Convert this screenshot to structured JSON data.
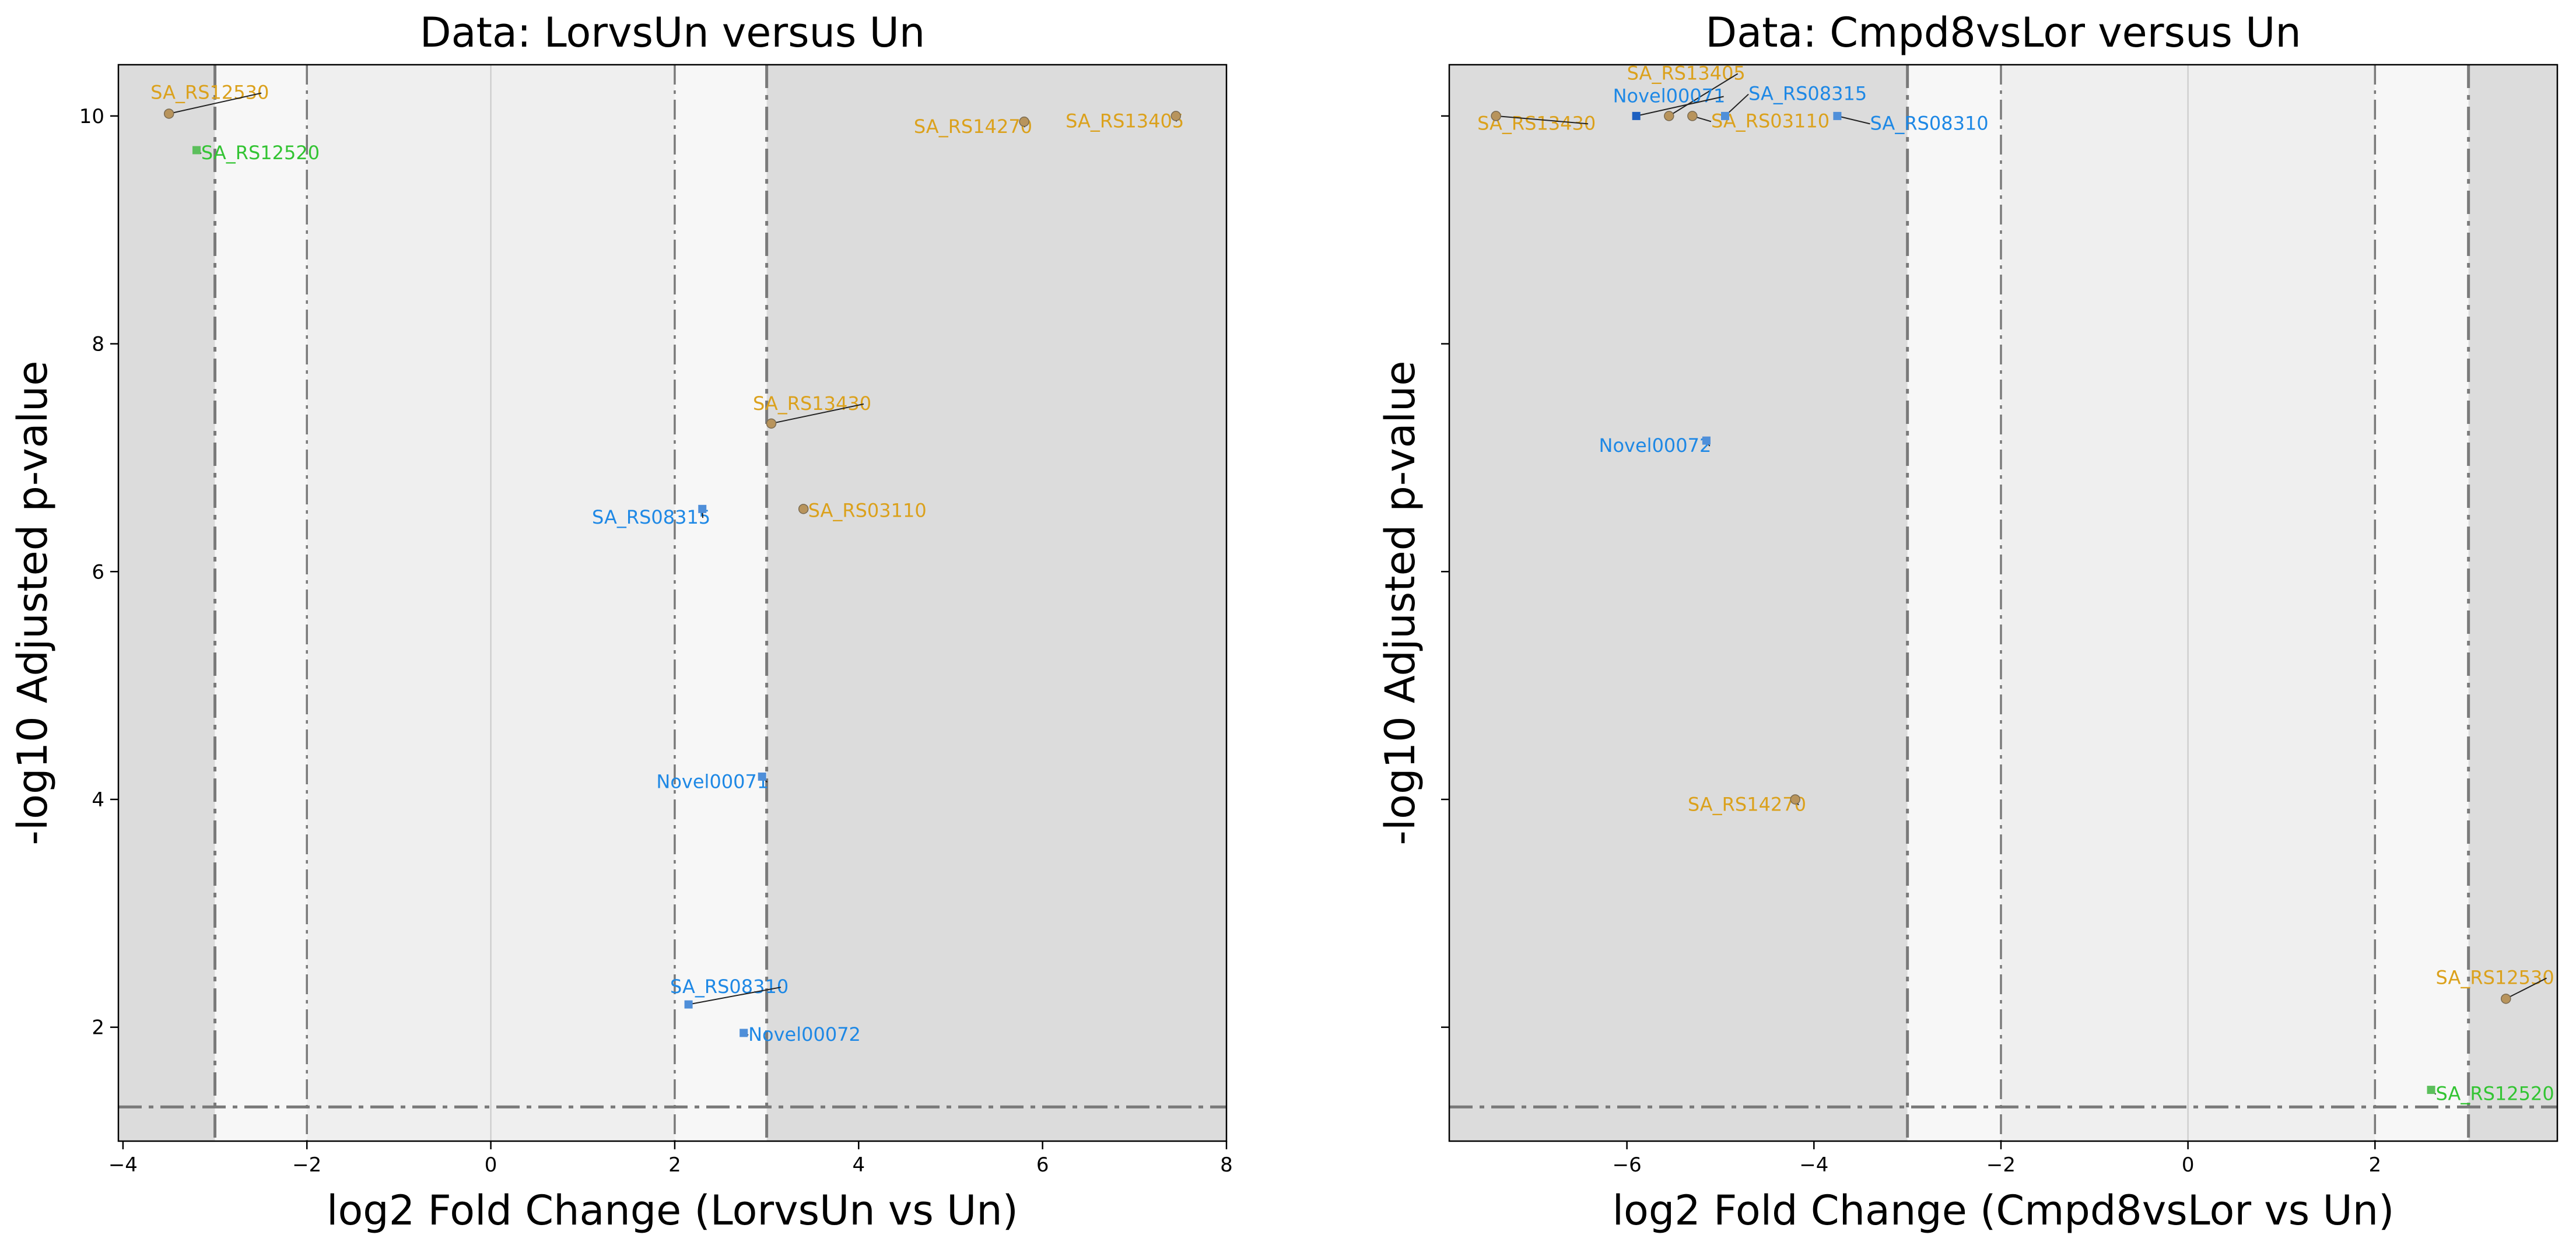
{
  "chart_data": [
    {
      "type": "scatter",
      "title": "Data: LorvsUn versus Un",
      "xlabel": "log2 Fold Change (LorvsUn vs Un)",
      "ylabel": "-log10 Adjusted p-value",
      "xlim": [
        -4.05,
        8.0
      ],
      "ylim": [
        1.0,
        10.45
      ],
      "xticks": [
        -4,
        -2,
        0,
        2,
        4,
        6,
        8
      ],
      "xtick_labels": [
        "−4",
        "−2",
        "0",
        "2",
        "4",
        "6",
        "8"
      ],
      "yticks": [
        2,
        4,
        6,
        8,
        10
      ],
      "ytick_labels": [
        "2",
        "4",
        "6",
        "8",
        "10"
      ],
      "grid": false,
      "legend": "none",
      "threshold_lines": {
        "x_outer": [
          -3,
          3
        ],
        "x_inner": [
          -2,
          2
        ],
        "y": 1.3
      },
      "shaded_regions": {
        "outer": "#dcdcdc",
        "inner": "#f7f7f7",
        "center": "#efefef"
      },
      "points": [
        {
          "name": "SA_RS12530",
          "x": -3.5,
          "y": 10.02,
          "color": "#b8945c",
          "label_color": "#dba11c",
          "marker": "circle",
          "label_x": -3.7,
          "label_y": 10.15
        },
        {
          "name": "SA_RS12520",
          "x": -3.2,
          "y": 9.7,
          "color": "#5cbf5c",
          "label_color": "#33c433",
          "marker": "square",
          "label_x": -3.15,
          "label_y": 9.62
        },
        {
          "name": "SA_RS14270",
          "x": 5.8,
          "y": 9.95,
          "color": "#b8945c",
          "label_color": "#dba11c",
          "marker": "circle",
          "label_x": 4.6,
          "label_y": 9.85
        },
        {
          "name": "SA_RS13405",
          "x": 7.45,
          "y": 10.0,
          "color": "#b8945c",
          "label_color": "#dba11c",
          "marker": "circle",
          "label_x": 6.25,
          "label_y": 9.9
        },
        {
          "name": "SA_RS13430",
          "x": 3.05,
          "y": 7.3,
          "color": "#b8945c",
          "label_color": "#dba11c",
          "marker": "circle",
          "label_x": 2.85,
          "label_y": 7.42
        },
        {
          "name": "SA_RS03110",
          "x": 3.4,
          "y": 6.55,
          "color": "#b8945c",
          "label_color": "#dba11c",
          "marker": "circle",
          "label_x": 3.45,
          "label_y": 6.48
        },
        {
          "name": "SA_RS08315",
          "x": 2.3,
          "y": 6.55,
          "color": "#4f8fd9",
          "label_color": "#1e88e5",
          "marker": "square",
          "label_x": 1.1,
          "label_y": 6.42
        },
        {
          "name": "Novel00071",
          "x": 2.95,
          "y": 4.2,
          "color": "#4f8fd9",
          "label_color": "#1e88e5",
          "marker": "square",
          "label_x": 1.8,
          "label_y": 4.1
        },
        {
          "name": "SA_RS08310",
          "x": 2.15,
          "y": 2.2,
          "color": "#4f8fd9",
          "label_color": "#1e88e5",
          "marker": "square",
          "label_x": 1.95,
          "label_y": 2.3
        },
        {
          "name": "Novel00072",
          "x": 2.75,
          "y": 1.95,
          "color": "#4f8fd9",
          "label_color": "#1e88e5",
          "marker": "square",
          "label_x": 2.8,
          "label_y": 1.88
        }
      ]
    },
    {
      "type": "scatter",
      "title": "Data: Cmpd8vsLor versus Un",
      "xlabel": "log2 Fold Change (Cmpd8vsLor vs Un)",
      "ylabel": "-log10 Adjusted p-value",
      "xlim": [
        -7.9,
        3.95
      ],
      "ylim": [
        1.0,
        10.45
      ],
      "xticks": [
        -6,
        -4,
        -2,
        0,
        2
      ],
      "xtick_labels": [
        "−6",
        "−4",
        "−2",
        "0",
        "2"
      ],
      "yticks": [
        2,
        4,
        6,
        8,
        10
      ],
      "ytick_labels": [
        "",
        "",
        "",
        "",
        ""
      ],
      "grid": false,
      "legend": "none",
      "threshold_lines": {
        "x_outer": [
          -3,
          3
        ],
        "x_inner": [
          -2,
          2
        ],
        "y": 1.3
      },
      "shaded_regions": {
        "outer": "#dcdcdc",
        "inner": "#f7f7f7",
        "center": "#efefef"
      },
      "points": [
        {
          "name": "SA_RS13430",
          "x": -7.4,
          "y": 10.0,
          "color": "#b8945c",
          "label_color": "#dba11c",
          "marker": "circle",
          "label_x": -7.6,
          "label_y": 9.88
        },
        {
          "name": "SA_RS13405",
          "x": -5.55,
          "y": 10.0,
          "color": "#b8945c",
          "label_color": "#dba11c",
          "marker": "circle",
          "label_x": -6.0,
          "label_y": 10.32
        },
        {
          "name": "Novel00071",
          "x": -5.9,
          "y": 10.0,
          "color": "#1e60c0",
          "label_color": "#1e88e5",
          "marker": "square",
          "label_x": -6.15,
          "label_y": 10.12
        },
        {
          "name": "SA_RS03110",
          "x": -5.3,
          "y": 10.0,
          "color": "#b8945c",
          "label_color": "#dba11c",
          "marker": "circle",
          "label_x": -5.1,
          "label_y": 9.9
        },
        {
          "name": "SA_RS08315",
          "x": -4.95,
          "y": 10.0,
          "color": "#4f8fd9",
          "label_color": "#1e88e5",
          "marker": "square",
          "label_x": -4.7,
          "label_y": 10.14
        },
        {
          "name": "SA_RS08310",
          "x": -3.75,
          "y": 10.0,
          "color": "#4f8fd9",
          "label_color": "#1e88e5",
          "marker": "square",
          "label_x": -3.4,
          "label_y": 9.88
        },
        {
          "name": "Novel00072",
          "x": -5.15,
          "y": 7.15,
          "color": "#4f8fd9",
          "label_color": "#1e88e5",
          "marker": "square",
          "label_x": -6.3,
          "label_y": 7.05
        },
        {
          "name": "SA_RS14270",
          "x": -4.2,
          "y": 4.0,
          "color": "#b8945c",
          "label_color": "#dba11c",
          "marker": "circle",
          "label_x": -5.35,
          "label_y": 3.9
        },
        {
          "name": "SA_RS12530",
          "x": 3.4,
          "y": 2.25,
          "color": "#b8945c",
          "label_color": "#dba11c",
          "marker": "circle",
          "label_x": 2.65,
          "label_y": 2.38
        },
        {
          "name": "SA_RS12520",
          "x": 2.6,
          "y": 1.45,
          "color": "#5cbf5c",
          "label_color": "#33c433",
          "marker": "square",
          "label_x": 2.65,
          "label_y": 1.36
        }
      ]
    }
  ]
}
